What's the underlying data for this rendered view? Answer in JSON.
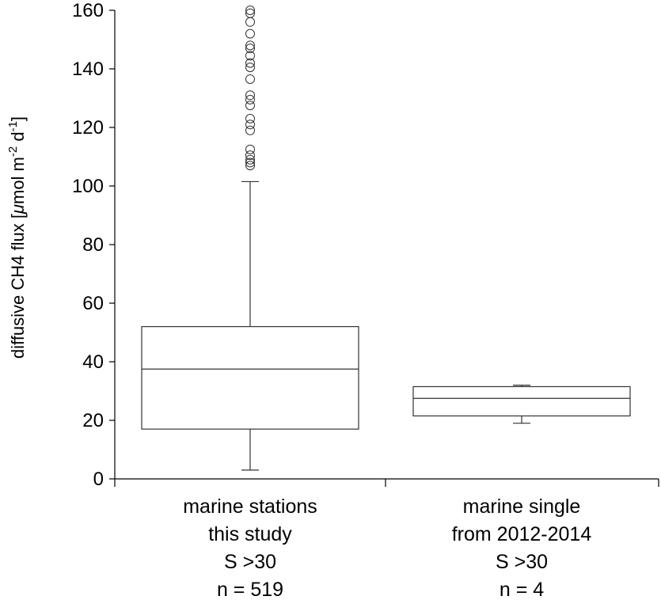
{
  "chart_data": {
    "type": "box",
    "ylabel": {
      "pre": "diffusive CH4 flux [",
      "mu": "μ",
      "unit_mid": "mol m",
      "exp1": "-2",
      "unit_d": " d",
      "exp2": "-1",
      "post": "]"
    },
    "ylim": [
      0,
      160
    ],
    "yticks": [
      "0",
      "20",
      "40",
      "60",
      "80",
      "100",
      "120",
      "140",
      "160"
    ],
    "grid": false,
    "categories": [
      {
        "label_lines": [
          "marine stations",
          "this study",
          "S >30",
          "n = 519"
        ],
        "whisker_low": 3,
        "q1": 17,
        "median": 37.5,
        "q3": 52,
        "whisker_high": 101.5,
        "outliers": [
          107,
          108,
          109,
          110.5,
          112.5,
          119,
          121,
          123,
          127.5,
          129.5,
          131,
          136.5,
          140.5,
          142,
          144.5,
          147,
          148,
          152,
          156,
          159,
          160
        ]
      },
      {
        "label_lines": [
          "marine single",
          "from 2012-2014",
          "S >30",
          "n = 4"
        ],
        "whisker_low": 19,
        "q1": 21.5,
        "median": 27.5,
        "q3": 31.5,
        "whisker_high": 32,
        "outliers": []
      }
    ]
  }
}
